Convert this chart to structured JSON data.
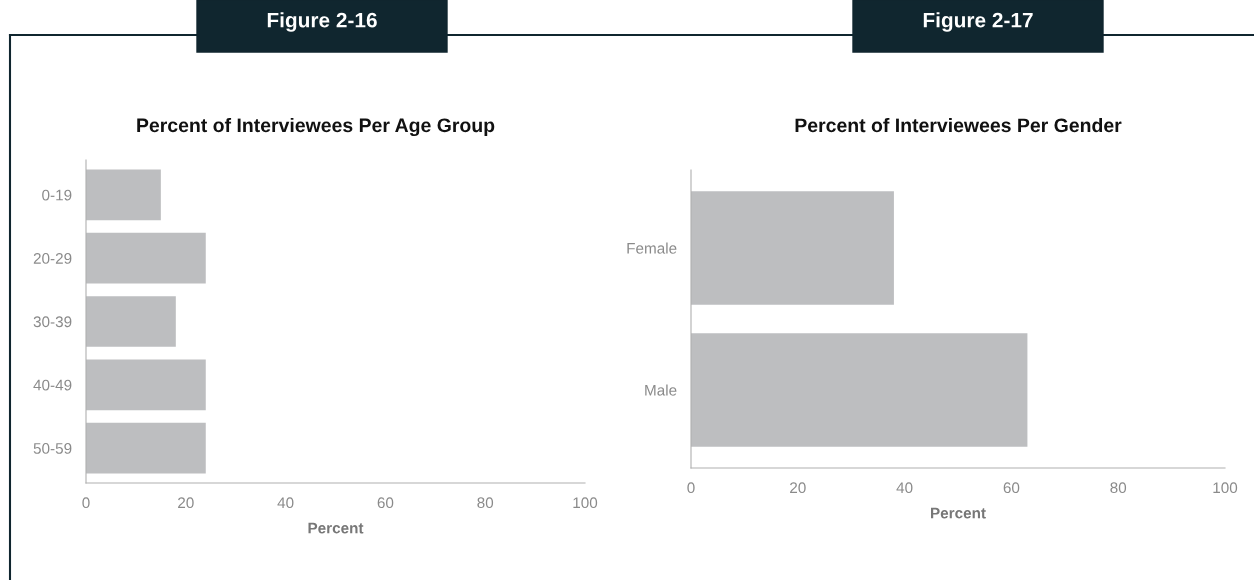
{
  "chart_data": [
    {
      "type": "bar",
      "orientation": "horizontal",
      "title": "Percent of Interviewees Per Age Group",
      "xlabel": "Percent",
      "annotations": [
        "Figure 2-16"
      ],
      "categories": [
        "0-19",
        "20-29",
        "30-39",
        "40-49",
        "50-59"
      ],
      "values": [
        15,
        24,
        18,
        24,
        24
      ],
      "color": "#bdbec0",
      "xlim": [
        0,
        100
      ],
      "xticks": [
        0,
        20,
        40,
        60,
        80,
        100
      ],
      "grid": false,
      "legend": false
    },
    {
      "type": "bar",
      "orientation": "horizontal",
      "title": "Percent of Interviewees Per Gender",
      "xlabel": "Percent",
      "annotations": [
        "Figure 2-17"
      ],
      "categories": [
        "Female",
        "Male"
      ],
      "values": [
        38,
        63
      ],
      "color": "#bdbec0",
      "xlim": [
        0,
        100
      ],
      "xticks": [
        0,
        20,
        40,
        60,
        80,
        100
      ],
      "grid": false,
      "legend": false
    }
  ]
}
